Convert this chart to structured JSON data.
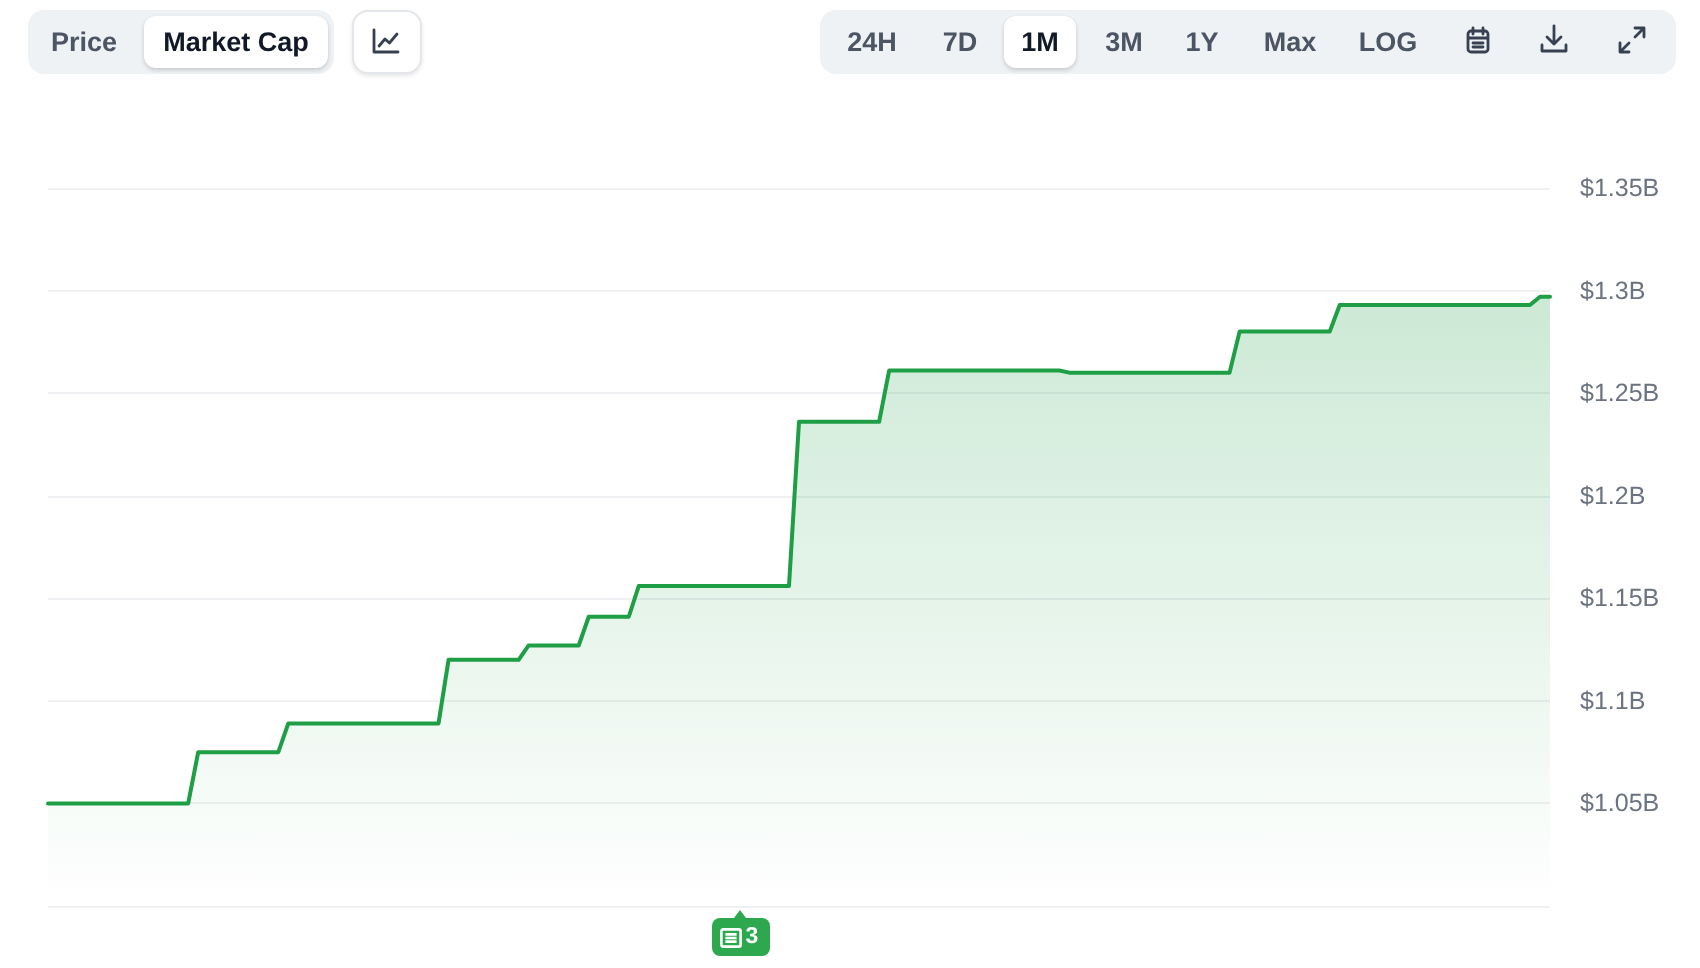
{
  "chart_data": {
    "type": "area",
    "color": "#1e9e45",
    "marker": "none",
    "grid": "y",
    "ylim": [
      1.0,
      1.35
    ],
    "yticks": [
      {
        "value": 1.0,
        "label": null
      },
      {
        "value": 1.05,
        "label": "$1.05B"
      },
      {
        "value": 1.1,
        "label": "$1.1B"
      },
      {
        "value": 1.15,
        "label": "$1.15B"
      },
      {
        "value": 1.2,
        "label": "$1.2B"
      },
      {
        "value": 1.25,
        "label": "$1.25B"
      },
      {
        "value": 1.3,
        "label": "$1.3B"
      },
      {
        "value": 1.35,
        "label": "$1.35B"
      }
    ],
    "annotations": [
      "Price",
      "Market Cap",
      "24H",
      "7D",
      "1M",
      "3M",
      "1Y",
      "Max",
      "LOG",
      "3"
    ],
    "categories": [
      null,
      null,
      null,
      null,
      null,
      null,
      null,
      null,
      null,
      null,
      null,
      null,
      null,
      null,
      null,
      null,
      null,
      null,
      null,
      null,
      null,
      null,
      null,
      null,
      null,
      null,
      null,
      null,
      null,
      null,
      null,
      null,
      null,
      null,
      null,
      null,
      null,
      null,
      null,
      null,
      null,
      null,
      null,
      null,
      null,
      null,
      null,
      null,
      null,
      null,
      null,
      null,
      null,
      null,
      null,
      null,
      null,
      null,
      null,
      null,
      null,
      null,
      null,
      null,
      null,
      null,
      null,
      null,
      null,
      null,
      null,
      null,
      null,
      null,
      null,
      null,
      null,
      null,
      null,
      null,
      null,
      null,
      null,
      null,
      null,
      null,
      null,
      null,
      null,
      null,
      null,
      null,
      null,
      null,
      null,
      null,
      null,
      null,
      null,
      null,
      null,
      null,
      null,
      null,
      null,
      null,
      null,
      null,
      null,
      null,
      null,
      null,
      null,
      null,
      null,
      null,
      null,
      null,
      null,
      null,
      null,
      null,
      null,
      null,
      null,
      null,
      null,
      null,
      null,
      null,
      null,
      null,
      null,
      null,
      null,
      null,
      null,
      null,
      null,
      null,
      null,
      null,
      null,
      null,
      null,
      null,
      null,
      null,
      null,
      null,
      null
    ],
    "values": [
      1.05,
      1.05,
      1.05,
      1.05,
      1.05,
      1.05,
      1.05,
      1.05,
      1.05,
      1.05,
      1.05,
      1.05,
      1.05,
      1.05,
      1.05,
      1.075,
      1.075,
      1.075,
      1.075,
      1.075,
      1.075,
      1.075,
      1.075,
      1.075,
      1.089,
      1.089,
      1.089,
      1.089,
      1.089,
      1.089,
      1.089,
      1.089,
      1.089,
      1.089,
      1.089,
      1.089,
      1.089,
      1.089,
      1.089,
      1.089,
      1.12,
      1.12,
      1.12,
      1.12,
      1.12,
      1.12,
      1.12,
      1.12,
      1.127,
      1.127,
      1.127,
      1.127,
      1.127,
      1.127,
      1.141,
      1.141,
      1.141,
      1.141,
      1.141,
      1.156,
      1.156,
      1.156,
      1.156,
      1.156,
      1.156,
      1.156,
      1.156,
      1.156,
      1.156,
      1.156,
      1.156,
      1.156,
      1.156,
      1.156,
      1.156,
      1.236,
      1.236,
      1.236,
      1.236,
      1.236,
      1.236,
      1.236,
      1.236,
      1.236,
      1.261,
      1.261,
      1.261,
      1.261,
      1.261,
      1.261,
      1.261,
      1.261,
      1.261,
      1.261,
      1.261,
      1.261,
      1.261,
      1.261,
      1.261,
      1.261,
      1.261,
      1.261,
      1.26,
      1.26,
      1.26,
      1.26,
      1.26,
      1.26,
      1.26,
      1.26,
      1.26,
      1.26,
      1.26,
      1.26,
      1.26,
      1.26,
      1.26,
      1.26,
      1.26,
      1.28,
      1.28,
      1.28,
      1.28,
      1.28,
      1.28,
      1.28,
      1.28,
      1.28,
      1.28,
      1.293,
      1.293,
      1.293,
      1.293,
      1.293,
      1.293,
      1.293,
      1.293,
      1.293,
      1.293,
      1.293,
      1.293,
      1.293,
      1.293,
      1.293,
      1.293,
      1.293,
      1.293,
      1.293,
      1.293,
      1.297,
      1.297
    ]
  }
}
